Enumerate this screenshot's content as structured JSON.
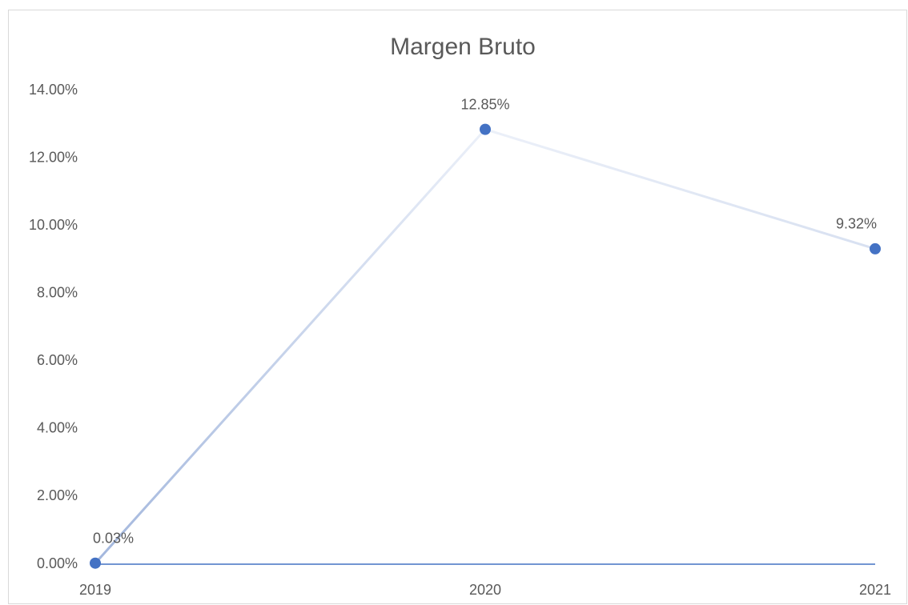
{
  "chart_data": {
    "type": "line",
    "title": "Margen Bruto",
    "categories": [
      "2019",
      "2020",
      "2021"
    ],
    "series": [
      {
        "name": "Margen Bruto",
        "color": "#4472c4",
        "values": [
          0.03,
          12.85,
          9.32
        ],
        "value_labels": [
          "0.03%",
          "12.85%",
          "9.32%"
        ]
      }
    ],
    "ylim": [
      0,
      14
    ],
    "yticks": [
      {
        "value": 0,
        "label": "0.00%"
      },
      {
        "value": 2,
        "label": "2.00%"
      },
      {
        "value": 4,
        "label": "4.00%"
      },
      {
        "value": 6,
        "label": "6.00%"
      },
      {
        "value": 8,
        "label": "8.00%"
      },
      {
        "value": 10,
        "label": "10.00%"
      },
      {
        "value": 12,
        "label": "12.00%"
      },
      {
        "value": 14,
        "label": "14.00%"
      }
    ],
    "grid": false
  }
}
